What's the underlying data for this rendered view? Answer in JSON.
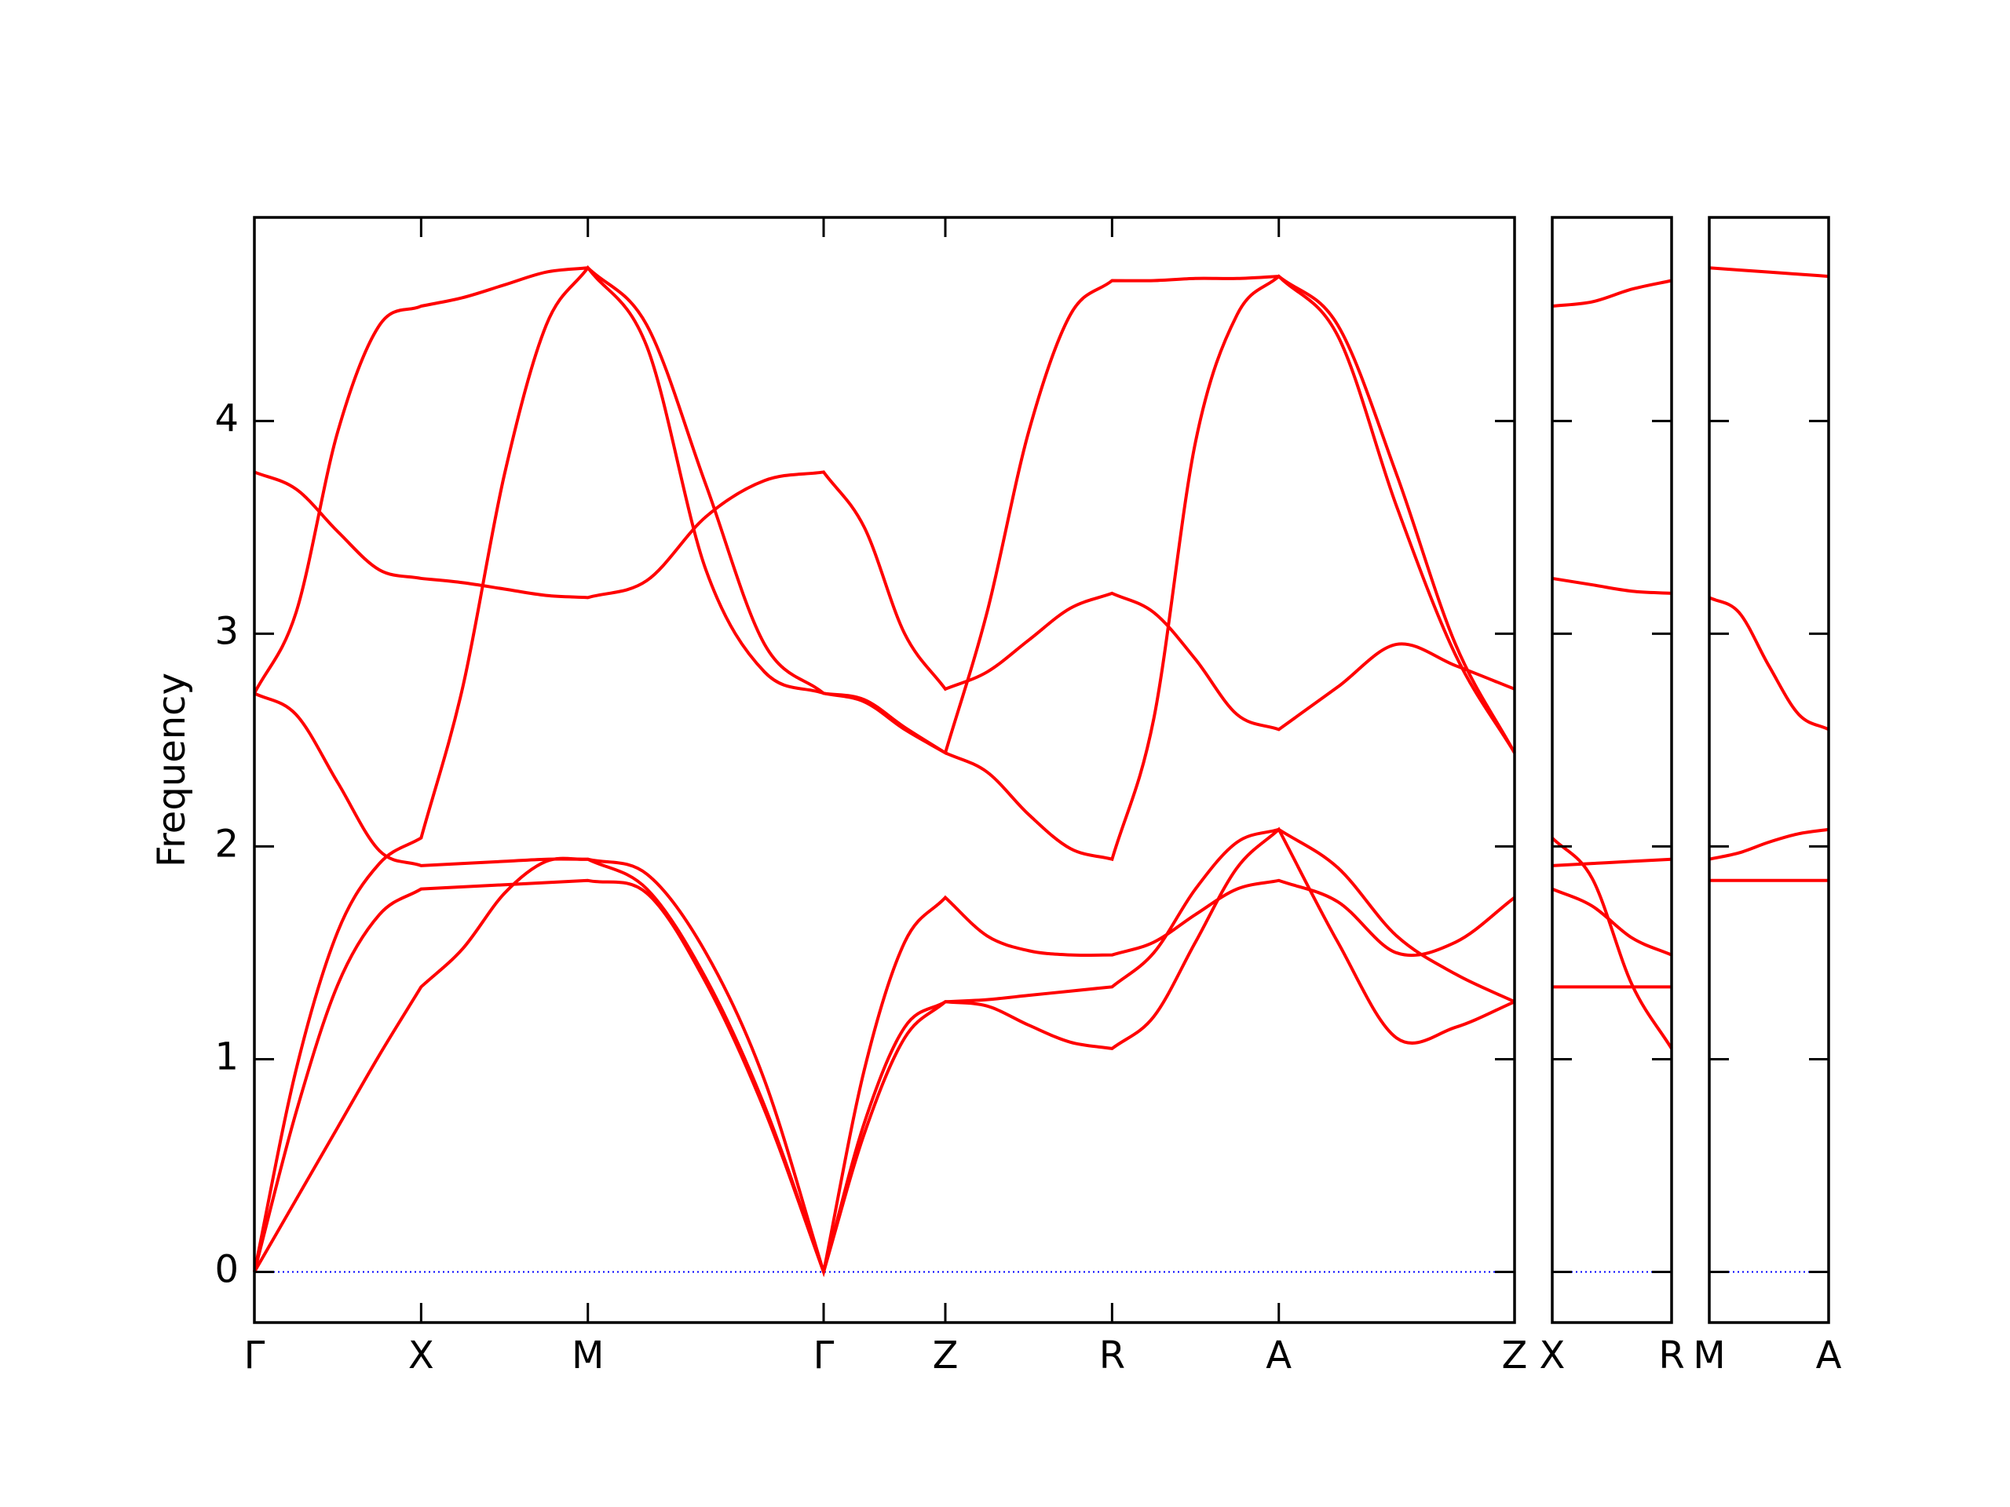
{
  "chart_data": [
    {
      "type": "line",
      "ylabel": "Frequency",
      "x": [
        0,
        0.125,
        0.25,
        0.375,
        0.5,
        0.625,
        0.75,
        0.875,
        1.0,
        1.177,
        1.354,
        1.53,
        1.707,
        1.829,
        1.95,
        2.072,
        2.197,
        2.322,
        2.447,
        2.572,
        2.697,
        2.822,
        2.947,
        3.072,
        3.249,
        3.425,
        3.602,
        3.779
      ],
      "series": [
        {
          "color": "#ff0000",
          "values": [
            0,
            0.34,
            0.68,
            1.02,
            1.34,
            1.52,
            1.78,
            1.93,
            1.94,
            1.8,
            1.38,
            0.78,
            0,
            0.65,
            1.1,
            1.27,
            1.25,
            1.16,
            1.08,
            1.05,
            1.2,
            1.55,
            1.9,
            2.08,
            1.55,
            1.1,
            1.15,
            1.27
          ]
        },
        {
          "color": "#ff0000",
          "values": [
            0,
            0.75,
            1.35,
            1.68,
            1.8,
            1.81,
            1.82,
            1.83,
            1.84,
            1.78,
            1.36,
            0.76,
            0,
            0.7,
            1.15,
            1.27,
            1.28,
            1.3,
            1.32,
            1.34,
            1.5,
            1.8,
            2.02,
            2.08,
            1.9,
            1.58,
            1.4,
            1.27
          ]
        },
        {
          "color": "#ff0000",
          "values": [
            0,
            0.95,
            1.6,
            1.92,
            2.04,
            2.75,
            3.75,
            4.45,
            4.72,
            4.35,
            3.3,
            2.82,
            2.72,
            2.68,
            2.55,
            2.44,
            3.1,
            3.95,
            4.5,
            4.66,
            4.66,
            4.67,
            4.67,
            4.68,
            4.4,
            3.6,
            2.9,
            2.44
          ]
        },
        {
          "color": "#ff0000",
          "values": [
            2.72,
            2.62,
            2.3,
            1.98,
            1.91,
            1.92,
            1.93,
            1.94,
            1.94,
            1.87,
            1.5,
            0.9,
            0,
            0.95,
            1.55,
            1.76,
            1.58,
            1.51,
            1.49,
            1.49,
            1.55,
            1.68,
            1.8,
            1.84,
            1.74,
            1.5,
            1.55,
            1.76
          ]
        },
        {
          "color": "#ff0000",
          "values": [
            2.72,
            3.1,
            3.95,
            4.45,
            4.54,
            4.58,
            4.64,
            4.7,
            4.72,
            4.45,
            3.7,
            2.95,
            2.72,
            2.69,
            2.56,
            2.44,
            2.35,
            2.15,
            1.99,
            1.94,
            2.6,
            3.9,
            4.5,
            4.68,
            4.45,
            3.75,
            2.95,
            2.44
          ]
        },
        {
          "color": "#ff0000",
          "values": [
            3.76,
            3.68,
            3.48,
            3.3,
            3.26,
            3.24,
            3.21,
            3.18,
            3.17,
            3.25,
            3.55,
            3.72,
            3.76,
            3.5,
            3.0,
            2.74,
            2.82,
            2.97,
            3.12,
            3.19,
            3.1,
            2.88,
            2.62,
            2.55,
            2.75,
            2.95,
            2.85,
            2.74
          ]
        }
      ],
      "xlim": [
        0,
        3.779
      ],
      "xticks": [
        {
          "value": 0,
          "label": "Γ"
        },
        {
          "value": 0.5,
          "label": "X"
        },
        {
          "value": 1.0,
          "label": "M"
        },
        {
          "value": 1.707,
          "label": "Γ"
        },
        {
          "value": 2.072,
          "label": "Z"
        },
        {
          "value": 2.572,
          "label": "R"
        },
        {
          "value": 3.072,
          "label": "A"
        },
        {
          "value": 3.779,
          "label": "Z"
        }
      ],
      "ylim": [
        -0.238,
        4.957
      ],
      "yticks": [
        0,
        1,
        2,
        3,
        4
      ],
      "ytick_labels": true,
      "zero_line": {
        "value": 0,
        "color": "#0000ff"
      }
    },
    {
      "type": "line",
      "x": [
        3.779,
        3.901,
        4.023,
        4.144
      ],
      "series": [
        {
          "color": "#ff0000",
          "values": [
            4.54,
            4.56,
            4.62,
            4.66
          ]
        },
        {
          "color": "#ff0000",
          "values": [
            3.26,
            3.23,
            3.2,
            3.19
          ]
        },
        {
          "color": "#ff0000",
          "values": [
            2.04,
            1.85,
            1.35,
            1.05
          ]
        },
        {
          "color": "#ff0000",
          "values": [
            1.91,
            1.92,
            1.93,
            1.94
          ]
        },
        {
          "color": "#ff0000",
          "values": [
            1.8,
            1.72,
            1.57,
            1.49
          ]
        },
        {
          "color": "#ff0000",
          "values": [
            1.34,
            1.34,
            1.34,
            1.34
          ]
        }
      ],
      "xlim": [
        3.779,
        4.144
      ],
      "xticks": [
        {
          "value": 3.779,
          "label": "X"
        },
        {
          "value": 4.144,
          "label": "R"
        }
      ],
      "ylim": [
        -0.238,
        4.957
      ],
      "yticks": [
        0,
        1,
        2,
        3,
        4
      ],
      "ytick_labels": false,
      "zero_line": {
        "value": 0,
        "color": "#0000ff"
      }
    },
    {
      "type": "line",
      "x": [
        4.144,
        4.235,
        4.326,
        4.418,
        4.509
      ],
      "series": [
        {
          "color": "#ff0000",
          "values": [
            4.72,
            4.71,
            4.7,
            4.69,
            4.68
          ]
        },
        {
          "color": "#ff0000",
          "values": [
            3.17,
            3.1,
            2.85,
            2.62,
            2.55
          ]
        },
        {
          "color": "#ff0000",
          "values": [
            1.94,
            1.97,
            2.02,
            2.06,
            2.08
          ]
        },
        {
          "color": "#ff0000",
          "values": [
            1.84,
            1.84,
            1.84,
            1.84,
            1.84
          ]
        }
      ],
      "xlim": [
        4.144,
        4.509
      ],
      "xticks": [
        {
          "value": 4.144,
          "label": "M"
        },
        {
          "value": 4.509,
          "label": "A"
        }
      ],
      "ylim": [
        -0.238,
        4.957
      ],
      "yticks": [
        0,
        1,
        2,
        3,
        4
      ],
      "ytick_labels": false,
      "zero_line": {
        "value": 0,
        "color": "#0000ff"
      }
    }
  ]
}
